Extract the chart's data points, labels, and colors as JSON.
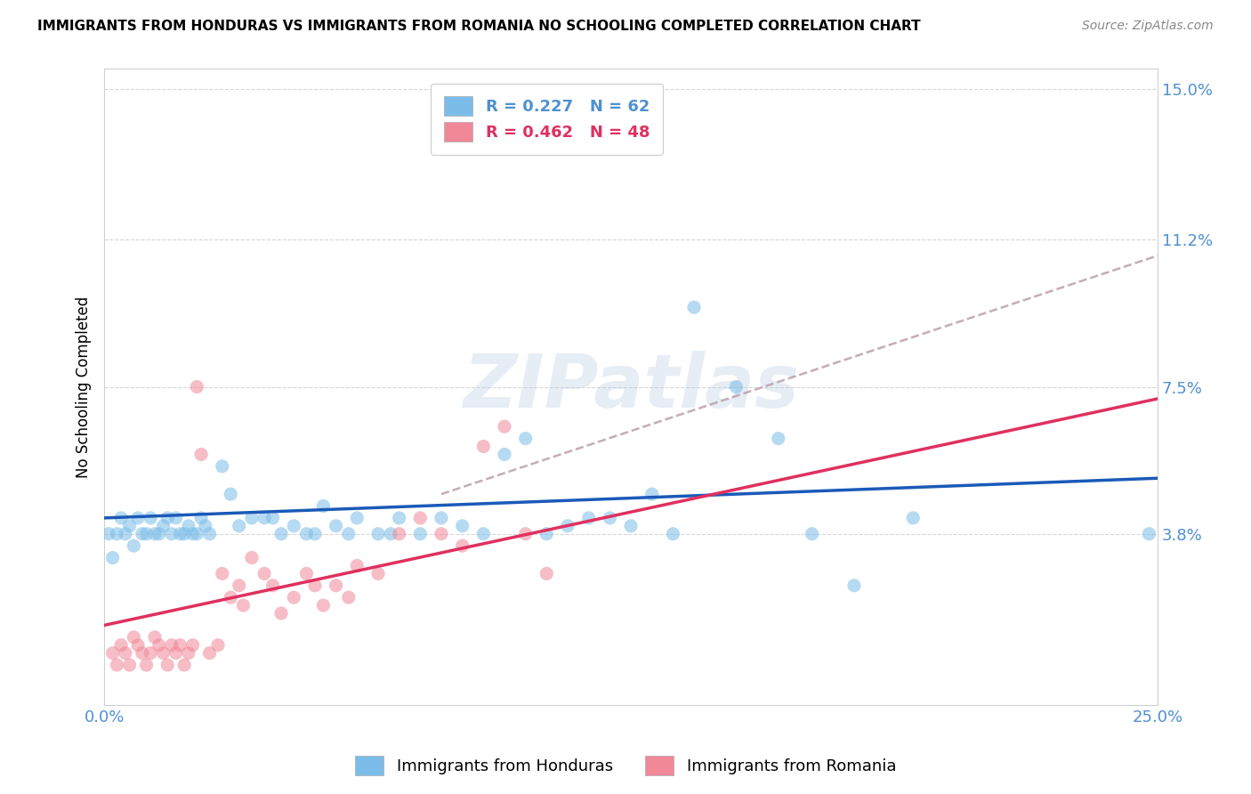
{
  "title": "IMMIGRANTS FROM HONDURAS VS IMMIGRANTS FROM ROMANIA NO SCHOOLING COMPLETED CORRELATION CHART",
  "source": "Source: ZipAtlas.com",
  "ylabel": "No Schooling Completed",
  "xlim": [
    0.0,
    0.25
  ],
  "ylim": [
    -0.005,
    0.155
  ],
  "ytick_vals": [
    0.038,
    0.075,
    0.112,
    0.15
  ],
  "ytick_labels": [
    "3.8%",
    "7.5%",
    "11.2%",
    "15.0%"
  ],
  "xtick_vals": [
    0.0,
    0.25
  ],
  "xtick_labels": [
    "0.0%",
    "25.0%"
  ],
  "honduras_color": "#7bbde8",
  "romania_color": "#f08898",
  "trend_honduras_color": "#1a5ab8",
  "trend_romania_color": "#e03060",
  "trend_dashed_color": "#b8a0a8",
  "tick_label_color": "#5090d0",
  "background_color": "#ffffff",
  "watermark_text": "ZIPatlas",
  "watermark_color": "#b8cce4",
  "watermark_alpha": 0.35,
  "legend_label1": "R = 0.227   N = 62",
  "legend_label2": "R = 0.462   N = 48",
  "legend_color1": "#7bbde8",
  "legend_color2": "#f08898",
  "legend_text_color1": "#5090d0",
  "legend_text_color2": "#e03060",
  "bottom_label1": "Immigrants from Honduras",
  "bottom_label2": "Immigrants from Romania",
  "trend_h_x0": 0.0,
  "trend_h_y0": 0.042,
  "trend_h_x1": 0.25,
  "trend_h_y1": 0.052,
  "trend_r_x0": 0.0,
  "trend_r_y0": 0.015,
  "trend_r_x1": 0.25,
  "trend_r_y1": 0.072,
  "trend_d_x0": 0.08,
  "trend_d_y0": 0.048,
  "trend_d_x1": 0.25,
  "trend_d_y1": 0.108,
  "honduras_data": [
    [
      0.001,
      0.038
    ],
    [
      0.002,
      0.032
    ],
    [
      0.003,
      0.038
    ],
    [
      0.004,
      0.042
    ],
    [
      0.005,
      0.038
    ],
    [
      0.006,
      0.04
    ],
    [
      0.007,
      0.035
    ],
    [
      0.008,
      0.042
    ],
    [
      0.009,
      0.038
    ],
    [
      0.01,
      0.038
    ],
    [
      0.011,
      0.042
    ],
    [
      0.012,
      0.038
    ],
    [
      0.013,
      0.038
    ],
    [
      0.014,
      0.04
    ],
    [
      0.015,
      0.042
    ],
    [
      0.016,
      0.038
    ],
    [
      0.017,
      0.042
    ],
    [
      0.018,
      0.038
    ],
    [
      0.019,
      0.038
    ],
    [
      0.02,
      0.04
    ],
    [
      0.021,
      0.038
    ],
    [
      0.022,
      0.038
    ],
    [
      0.023,
      0.042
    ],
    [
      0.024,
      0.04
    ],
    [
      0.025,
      0.038
    ],
    [
      0.028,
      0.055
    ],
    [
      0.03,
      0.048
    ],
    [
      0.032,
      0.04
    ],
    [
      0.035,
      0.042
    ],
    [
      0.038,
      0.042
    ],
    [
      0.04,
      0.042
    ],
    [
      0.042,
      0.038
    ],
    [
      0.045,
      0.04
    ],
    [
      0.048,
      0.038
    ],
    [
      0.05,
      0.038
    ],
    [
      0.052,
      0.045
    ],
    [
      0.055,
      0.04
    ],
    [
      0.058,
      0.038
    ],
    [
      0.06,
      0.042
    ],
    [
      0.065,
      0.038
    ],
    [
      0.068,
      0.038
    ],
    [
      0.07,
      0.042
    ],
    [
      0.075,
      0.038
    ],
    [
      0.08,
      0.042
    ],
    [
      0.085,
      0.04
    ],
    [
      0.09,
      0.038
    ],
    [
      0.095,
      0.058
    ],
    [
      0.1,
      0.062
    ],
    [
      0.105,
      0.038
    ],
    [
      0.11,
      0.04
    ],
    [
      0.115,
      0.042
    ],
    [
      0.12,
      0.042
    ],
    [
      0.125,
      0.04
    ],
    [
      0.13,
      0.048
    ],
    [
      0.135,
      0.038
    ],
    [
      0.14,
      0.095
    ],
    [
      0.15,
      0.075
    ],
    [
      0.16,
      0.062
    ],
    [
      0.168,
      0.038
    ],
    [
      0.178,
      0.025
    ],
    [
      0.192,
      0.042
    ],
    [
      0.248,
      0.038
    ]
  ],
  "romania_data": [
    [
      0.002,
      0.008
    ],
    [
      0.003,
      0.005
    ],
    [
      0.004,
      0.01
    ],
    [
      0.005,
      0.008
    ],
    [
      0.006,
      0.005
    ],
    [
      0.007,
      0.012
    ],
    [
      0.008,
      0.01
    ],
    [
      0.009,
      0.008
    ],
    [
      0.01,
      0.005
    ],
    [
      0.011,
      0.008
    ],
    [
      0.012,
      0.012
    ],
    [
      0.013,
      0.01
    ],
    [
      0.014,
      0.008
    ],
    [
      0.015,
      0.005
    ],
    [
      0.016,
      0.01
    ],
    [
      0.017,
      0.008
    ],
    [
      0.018,
      0.01
    ],
    [
      0.019,
      0.005
    ],
    [
      0.02,
      0.008
    ],
    [
      0.021,
      0.01
    ],
    [
      0.022,
      0.075
    ],
    [
      0.023,
      0.058
    ],
    [
      0.025,
      0.008
    ],
    [
      0.027,
      0.01
    ],
    [
      0.028,
      0.028
    ],
    [
      0.03,
      0.022
    ],
    [
      0.032,
      0.025
    ],
    [
      0.033,
      0.02
    ],
    [
      0.035,
      0.032
    ],
    [
      0.038,
      0.028
    ],
    [
      0.04,
      0.025
    ],
    [
      0.042,
      0.018
    ],
    [
      0.045,
      0.022
    ],
    [
      0.048,
      0.028
    ],
    [
      0.05,
      0.025
    ],
    [
      0.052,
      0.02
    ],
    [
      0.055,
      0.025
    ],
    [
      0.058,
      0.022
    ],
    [
      0.06,
      0.03
    ],
    [
      0.065,
      0.028
    ],
    [
      0.07,
      0.038
    ],
    [
      0.075,
      0.042
    ],
    [
      0.08,
      0.038
    ],
    [
      0.085,
      0.035
    ],
    [
      0.09,
      0.06
    ],
    [
      0.095,
      0.065
    ],
    [
      0.1,
      0.038
    ],
    [
      0.105,
      0.028
    ]
  ]
}
